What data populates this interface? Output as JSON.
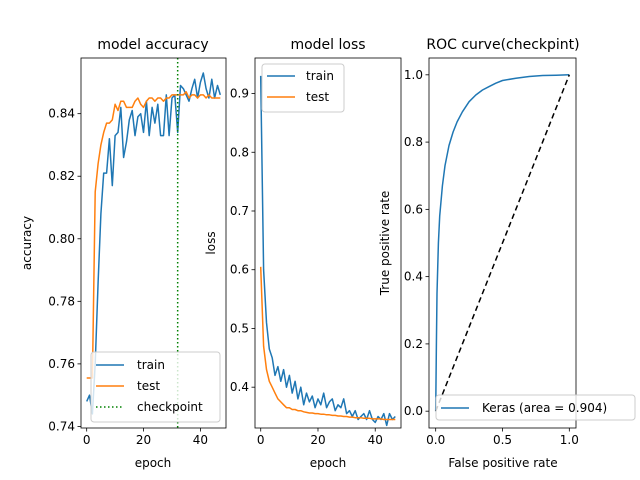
{
  "chart_data": [
    {
      "type": "line",
      "title": "model accuracy",
      "xlabel": "epoch",
      "ylabel": "accuracy",
      "xlim": [
        -2,
        49
      ],
      "ylim": [
        0.7395,
        0.8578
      ],
      "xticks": [
        0,
        20,
        40
      ],
      "yticks": [
        0.74,
        0.76,
        0.78,
        0.8,
        0.82,
        0.84
      ],
      "ytick_labels": [
        "0.74",
        "0.76",
        "0.78",
        "0.80",
        "0.82",
        "0.84"
      ],
      "legend_location": "lower-right",
      "series": [
        {
          "name": "train",
          "color": "#1f77b4",
          "x": [
            0,
            1,
            2,
            3,
            4,
            5,
            6,
            7,
            8,
            9,
            10,
            11,
            12,
            13,
            14,
            15,
            16,
            17,
            18,
            19,
            20,
            21,
            22,
            23,
            24,
            25,
            26,
            27,
            28,
            29,
            30,
            31,
            32,
            33,
            34,
            35,
            36,
            37,
            38,
            39,
            40,
            41,
            42,
            43,
            44,
            45,
            46,
            47
          ],
          "values": [
            0.748,
            0.75,
            0.744,
            0.76,
            0.786,
            0.808,
            0.821,
            0.821,
            0.832,
            0.817,
            0.833,
            0.834,
            0.842,
            0.826,
            0.831,
            0.838,
            0.841,
            0.833,
            0.839,
            0.84,
            0.834,
            0.844,
            0.833,
            0.842,
            0.837,
            0.843,
            0.833,
            0.833,
            0.846,
            0.833,
            0.845,
            0.846,
            0.834,
            0.849,
            0.848,
            0.846,
            0.844,
            0.848,
            0.851,
            0.845,
            0.85,
            0.853,
            0.848,
            0.845,
            0.851,
            0.845,
            0.849,
            0.846
          ]
        },
        {
          "name": "test",
          "color": "#ff7f0e",
          "x": [
            0,
            1,
            2,
            3,
            4,
            5,
            6,
            7,
            8,
            9,
            10,
            11,
            12,
            13,
            14,
            15,
            16,
            17,
            18,
            19,
            20,
            21,
            22,
            23,
            24,
            25,
            26,
            27,
            28,
            29,
            30,
            31,
            32,
            33,
            34,
            35,
            36,
            37,
            38,
            39,
            40,
            41,
            42,
            43,
            44,
            45,
            46,
            47
          ],
          "values": [
            0.7555,
            0.7555,
            0.7555,
            0.815,
            0.824,
            0.83,
            0.834,
            0.837,
            0.837,
            0.838,
            0.843,
            0.841,
            0.844,
            0.844,
            0.842,
            0.842,
            0.842,
            0.844,
            0.845,
            0.843,
            0.842,
            0.844,
            0.845,
            0.845,
            0.844,
            0.845,
            0.845,
            0.844,
            0.845,
            0.845,
            0.846,
            0.846,
            0.846,
            0.846,
            0.846,
            0.847,
            0.845,
            0.846,
            0.846,
            0.845,
            0.846,
            0.846,
            0.845,
            0.846,
            0.845,
            0.845,
            0.845,
            0.845
          ]
        },
        {
          "name": "checkpoint",
          "color": "#008000",
          "style": "dotted-vertical",
          "x": [
            32
          ]
        }
      ]
    },
    {
      "type": "line",
      "title": "model loss",
      "xlabel": "epoch",
      "ylabel": "loss",
      "xlim": [
        -2,
        49
      ],
      "ylim": [
        0.3305,
        0.9605
      ],
      "xticks": [
        0,
        20,
        40
      ],
      "yticks": [
        0.4,
        0.5,
        0.6,
        0.7,
        0.8,
        0.9
      ],
      "ytick_labels": [
        "0.4",
        "0.5",
        "0.6",
        "0.7",
        "0.8",
        "0.9"
      ],
      "legend_location": "upper-left",
      "series": [
        {
          "name": "train",
          "color": "#1f77b4",
          "x": [
            0,
            1,
            2,
            3,
            4,
            5,
            6,
            7,
            8,
            9,
            10,
            11,
            12,
            13,
            14,
            15,
            16,
            17,
            18,
            19,
            20,
            21,
            22,
            23,
            24,
            25,
            26,
            27,
            28,
            29,
            30,
            31,
            32,
            33,
            34,
            35,
            36,
            37,
            38,
            39,
            40,
            41,
            42,
            43,
            44,
            45,
            46,
            47
          ],
          "values": [
            0.93,
            0.6,
            0.51,
            0.465,
            0.45,
            0.42,
            0.435,
            0.41,
            0.43,
            0.4,
            0.42,
            0.39,
            0.41,
            0.38,
            0.4,
            0.37,
            0.39,
            0.375,
            0.385,
            0.365,
            0.38,
            0.37,
            0.39,
            0.365,
            0.375,
            0.38,
            0.36,
            0.37,
            0.365,
            0.38,
            0.355,
            0.36,
            0.35,
            0.36,
            0.345,
            0.35,
            0.355,
            0.345,
            0.36,
            0.345,
            0.34,
            0.35,
            0.345,
            0.355,
            0.335,
            0.355,
            0.345,
            0.35
          ]
        },
        {
          "name": "test",
          "color": "#ff7f0e",
          "x": [
            0,
            1,
            2,
            3,
            4,
            5,
            6,
            7,
            8,
            9,
            10,
            11,
            12,
            13,
            14,
            15,
            16,
            17,
            18,
            19,
            20,
            21,
            22,
            23,
            24,
            25,
            26,
            27,
            28,
            29,
            30,
            31,
            32,
            33,
            34,
            35,
            36,
            37,
            38,
            39,
            40,
            41,
            42,
            43,
            44,
            45,
            46,
            47
          ],
          "values": [
            0.605,
            0.47,
            0.43,
            0.41,
            0.4,
            0.39,
            0.38,
            0.375,
            0.37,
            0.365,
            0.365,
            0.362,
            0.362,
            0.36,
            0.36,
            0.358,
            0.357,
            0.356,
            0.356,
            0.355,
            0.355,
            0.354,
            0.354,
            0.353,
            0.353,
            0.352,
            0.352,
            0.351,
            0.351,
            0.35,
            0.35,
            0.349,
            0.349,
            0.348,
            0.348,
            0.348,
            0.347,
            0.347,
            0.347,
            0.346,
            0.346,
            0.346,
            0.346,
            0.345,
            0.345,
            0.345,
            0.345,
            0.345
          ]
        }
      ]
    },
    {
      "type": "line",
      "title": "ROC curve(checkpint)",
      "xlabel": "False positive rate",
      "ylabel": "True positive rate",
      "xlim": [
        -0.05,
        1.05
      ],
      "ylim": [
        -0.05,
        1.05
      ],
      "xticks": [
        0.0,
        0.5,
        1.0
      ],
      "xtick_labels": [
        "0.0",
        "0.5",
        "1.0"
      ],
      "yticks": [
        0.0,
        0.2,
        0.4,
        0.6,
        0.8,
        1.0
      ],
      "ytick_labels": [
        "0.0",
        "0.2",
        "0.4",
        "0.6",
        "0.8",
        "1.0"
      ],
      "legend_location": "lower-right",
      "series": [
        {
          "name": "Keras (area = 0.904)",
          "color": "#1f77b4",
          "x": [
            0.0,
            0.005,
            0.01,
            0.02,
            0.03,
            0.05,
            0.07,
            0.1,
            0.13,
            0.16,
            0.2,
            0.25,
            0.3,
            0.35,
            0.4,
            0.45,
            0.5,
            0.6,
            0.7,
            0.8,
            0.9,
            1.0
          ],
          "values": [
            0.0,
            0.2,
            0.35,
            0.5,
            0.58,
            0.67,
            0.73,
            0.79,
            0.83,
            0.86,
            0.89,
            0.92,
            0.94,
            0.955,
            0.965,
            0.975,
            0.983,
            0.99,
            0.995,
            0.998,
            0.999,
            1.0
          ]
        },
        {
          "name": "",
          "color": "#000000",
          "style": "dashed",
          "x": [
            0,
            1
          ],
          "values": [
            0,
            1
          ]
        }
      ]
    }
  ]
}
